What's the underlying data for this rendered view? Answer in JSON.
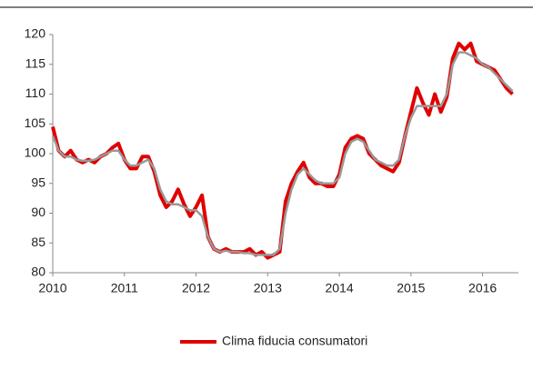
{
  "chart_data": {
    "type": "line",
    "x": [
      2010,
      2010.083,
      2010.167,
      2010.25,
      2010.333,
      2010.417,
      2010.5,
      2010.583,
      2010.667,
      2010.75,
      2010.833,
      2010.917,
      2011,
      2011.083,
      2011.167,
      2011.25,
      2011.333,
      2011.417,
      2011.5,
      2011.583,
      2011.667,
      2011.75,
      2011.833,
      2011.917,
      2012,
      2012.083,
      2012.167,
      2012.25,
      2012.333,
      2012.417,
      2012.5,
      2012.583,
      2012.667,
      2012.75,
      2012.833,
      2012.917,
      2013,
      2013.083,
      2013.167,
      2013.25,
      2013.333,
      2013.417,
      2013.5,
      2013.583,
      2013.667,
      2013.75,
      2013.833,
      2013.917,
      2014,
      2014.083,
      2014.167,
      2014.25,
      2014.333,
      2014.417,
      2014.5,
      2014.583,
      2014.667,
      2014.75,
      2014.833,
      2014.917,
      2015,
      2015.083,
      2015.167,
      2015.25,
      2015.333,
      2015.417,
      2015.5,
      2015.583,
      2015.667,
      2015.75,
      2015.833,
      2015.917,
      2016,
      2016.083,
      2016.167,
      2016.25,
      2016.333,
      2016.417
    ],
    "series": [
      {
        "name": "Clima fiducia consumatori",
        "color": "#e00000",
        "values": [
          104.5,
          100.5,
          99.5,
          100.5,
          99,
          98.5,
          99,
          98.5,
          99.5,
          100,
          101,
          101.7,
          99,
          97.5,
          97.5,
          99.5,
          99.5,
          97,
          93,
          91,
          92,
          94,
          91.5,
          89.5,
          91,
          93,
          86,
          84,
          83.5,
          84,
          83.5,
          83.5,
          83.5,
          84,
          83,
          83.5,
          82.5,
          83,
          83.5,
          92,
          95,
          97,
          98.5,
          96,
          95,
          95,
          94.5,
          94.5,
          96.5,
          101,
          102.5,
          103,
          102.5,
          100,
          99,
          98,
          97.5,
          97,
          98.5,
          103,
          107,
          111,
          108.5,
          106.5,
          110,
          107,
          109.5,
          116,
          118.5,
          117.5,
          118.5,
          115.5,
          115,
          114.5,
          114,
          112.5,
          111,
          110
        ]
      },
      {
        "color": "#999999",
        "values": [
          103,
          100.5,
          99.5,
          99.5,
          99,
          98.8,
          98.8,
          99,
          99.5,
          100,
          100.5,
          100.5,
          99,
          98,
          98,
          98.5,
          99,
          97.5,
          94,
          92,
          91.5,
          91.5,
          91,
          90.5,
          90.5,
          89.5,
          86,
          84,
          83.5,
          83.7,
          83.5,
          83.5,
          83.3,
          83.3,
          83,
          83,
          83,
          83,
          84,
          90,
          94,
          96.5,
          97.5,
          96.5,
          95.5,
          95,
          95,
          95,
          96,
          100,
          102,
          102.5,
          102,
          100.5,
          99,
          98.5,
          98,
          98,
          99,
          103,
          106,
          108,
          108,
          108,
          108,
          108,
          110,
          115,
          117,
          117,
          116.5,
          116,
          115,
          114.5,
          113.5,
          112.5,
          111.5,
          110.5
        ]
      }
    ],
    "xlim": [
      2010,
      2016.5
    ],
    "xticks": [
      2010,
      2011,
      2012,
      2013,
      2014,
      2015,
      2016
    ],
    "ylim": [
      80,
      120
    ],
    "yticks": [
      80,
      85,
      90,
      95,
      100,
      105,
      110,
      115,
      120
    ],
    "legend": "bottom"
  }
}
